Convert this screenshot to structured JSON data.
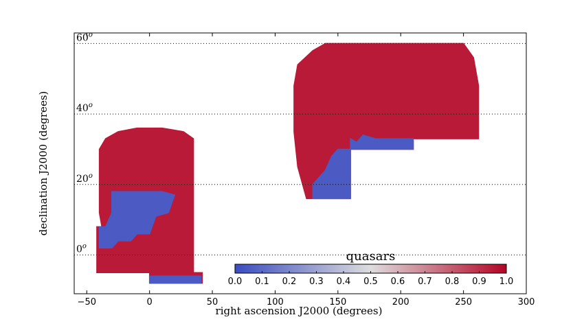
{
  "chart_data": {
    "type": "scatter",
    "xlabel": "right ascension J2000 (degrees)",
    "ylabel": "declination J2000 (degrees)",
    "xlim": [
      -60,
      300
    ],
    "ylim": [
      -11,
      63
    ],
    "xticks": [
      -50,
      0,
      50,
      100,
      150,
      200,
      250,
      300
    ],
    "dec_labels": [
      {
        "value": 60,
        "text": "60",
        "sup": "o"
      },
      {
        "value": 40,
        "text": "40",
        "sup": "o"
      },
      {
        "value": 20,
        "text": "20",
        "sup": "o"
      },
      {
        "value": 0,
        "text": "0",
        "sup": "o"
      }
    ],
    "gridlines_dec": [
      60,
      40,
      20,
      0
    ],
    "colorbar": {
      "title": "quasars",
      "range": [
        0.0,
        1.0
      ],
      "ticks": [
        "0.0",
        "0.1",
        "0.2",
        "0.3",
        "0.4",
        "0.5",
        "0.6",
        "0.7",
        "0.8",
        "0.9",
        "1.0"
      ],
      "colormap": "coolwarm",
      "low_color": "#3b4cc0",
      "mid_color": "#dddddd",
      "high_color": "#b40426"
    },
    "regions": [
      {
        "value": 0.95,
        "polygon": [
          [
            -40,
            30
          ],
          [
            -35,
            33
          ],
          [
            -25,
            35
          ],
          [
            -10,
            36
          ],
          [
            10,
            36
          ],
          [
            27,
            35
          ],
          [
            35,
            33
          ],
          [
            35,
            -5
          ],
          [
            42,
            -5
          ],
          [
            42,
            -8
          ],
          [
            0,
            -8
          ],
          [
            0,
            -5
          ],
          [
            -42,
            -5
          ],
          [
            -42,
            8
          ],
          [
            -38,
            8
          ],
          [
            -40,
            12
          ]
        ]
      },
      {
        "value": 0.05,
        "polygon": [
          [
            -30,
            18
          ],
          [
            10,
            18
          ],
          [
            20,
            17
          ],
          [
            15,
            12
          ],
          [
            5,
            11
          ],
          [
            0,
            6
          ],
          [
            -10,
            6
          ],
          [
            -15,
            4
          ],
          [
            -25,
            4
          ],
          [
            -30,
            2
          ],
          [
            -40,
            2
          ],
          [
            -40,
            8
          ],
          [
            -35,
            8
          ],
          [
            -30,
            12
          ]
        ]
      },
      {
        "value": 0.05,
        "polygon": [
          [
            0,
            -6
          ],
          [
            41,
            -6
          ],
          [
            41,
            -8
          ],
          [
            0,
            -8
          ]
        ]
      },
      {
        "value": 0.95,
        "polygon": [
          [
            115,
            48
          ],
          [
            118,
            54
          ],
          [
            130,
            58
          ],
          [
            140,
            60
          ],
          [
            250,
            60
          ],
          [
            258,
            56
          ],
          [
            262,
            48
          ],
          [
            262,
            33
          ],
          [
            210,
            33
          ],
          [
            210,
            30
          ],
          [
            160,
            30
          ],
          [
            160,
            16
          ],
          [
            125,
            16
          ],
          [
            118,
            25
          ],
          [
            115,
            35
          ]
        ]
      },
      {
        "value": 0.05,
        "polygon": [
          [
            160,
            30
          ],
          [
            210,
            30
          ],
          [
            210,
            33
          ],
          [
            180,
            33
          ],
          [
            170,
            34
          ],
          [
            165,
            32
          ],
          [
            160,
            33
          ]
        ]
      },
      {
        "value": 0.05,
        "polygon": [
          [
            130,
            16
          ],
          [
            160,
            16
          ],
          [
            160,
            30
          ],
          [
            150,
            30
          ],
          [
            145,
            28
          ],
          [
            140,
            24
          ],
          [
            135,
            22
          ],
          [
            130,
            20
          ]
        ]
      }
    ]
  }
}
